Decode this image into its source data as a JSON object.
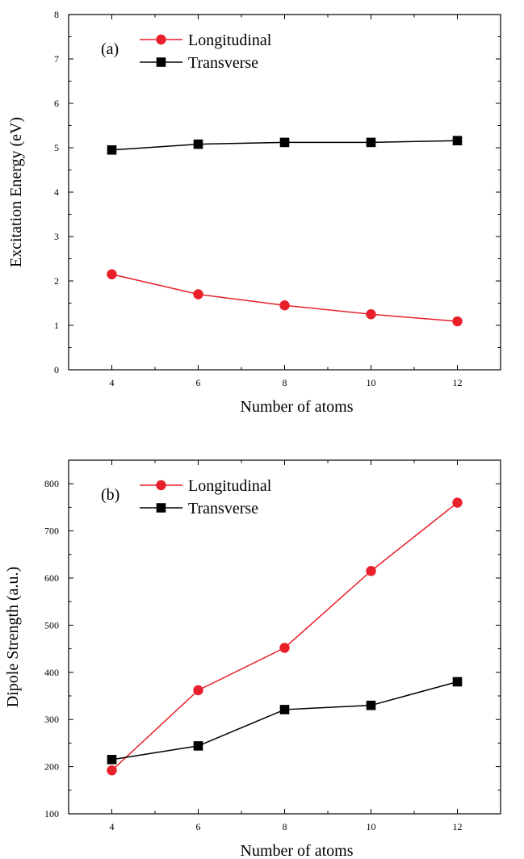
{
  "chart_data": [
    {
      "type": "line",
      "panel_label": "(a)",
      "xlabel": "Number of atoms",
      "ylabel": "Excitation Energy (eV)",
      "xlim": [
        3,
        13
      ],
      "ylim": [
        0,
        8
      ],
      "xticks": [
        4,
        6,
        8,
        10,
        12
      ],
      "yticks": [
        0,
        1,
        2,
        3,
        4,
        5,
        6,
        7,
        8
      ],
      "x": [
        4,
        6,
        8,
        10,
        12
      ],
      "legend_position": "top-left",
      "series": [
        {
          "name": "Longitudinal",
          "color": "#e8202a",
          "marker": "circle",
          "values": [
            2.15,
            1.7,
            1.45,
            1.25,
            1.09
          ]
        },
        {
          "name": "Transverse",
          "color": "#000000",
          "marker": "square",
          "values": [
            4.95,
            5.08,
            5.12,
            5.12,
            5.16
          ]
        }
      ]
    },
    {
      "type": "line",
      "panel_label": "(b)",
      "xlabel": "Number of atoms",
      "ylabel": "Dipole Strength (a.u.)",
      "xlim": [
        3,
        13
      ],
      "ylim": [
        100,
        850
      ],
      "xticks": [
        4,
        6,
        8,
        10,
        12
      ],
      "yticks": [
        100,
        200,
        300,
        400,
        500,
        600,
        700,
        800
      ],
      "x": [
        4,
        6,
        8,
        10,
        12
      ],
      "legend_position": "top-left",
      "series": [
        {
          "name": "Longitudinal",
          "color": "#e8202a",
          "marker": "circle",
          "values": [
            192,
            362,
            452,
            615,
            760
          ]
        },
        {
          "name": "Transverse",
          "color": "#000000",
          "marker": "square",
          "values": [
            215,
            244,
            321,
            330,
            380
          ]
        }
      ]
    }
  ]
}
